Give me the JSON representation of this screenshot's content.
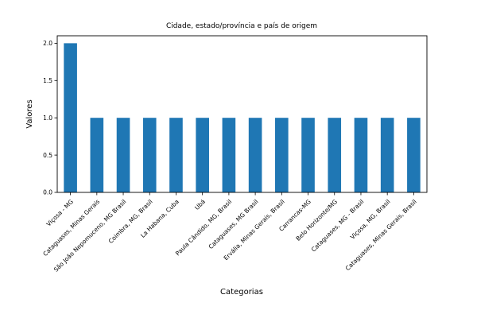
{
  "chart_data": {
    "type": "bar",
    "title": "Cidade, estado/província e país de origem",
    "xlabel": "Categorias",
    "ylabel": "Valores",
    "categories": [
      "Viçosa - MG",
      "Cataguases, Minas Gerais",
      "São João Nepomuceno, MG Brasil",
      "Coimbra, MG, Brasil",
      "La Habana, Cuba",
      "Ubá",
      "Paula Cândido, MG, Brasil",
      "Cataguases, MG Brasil",
      "Ervália, Minas Gerais, Brasil",
      "Carrancas-MG",
      "Belo Horizonte/MG",
      "Cataguases, MG - Brasil",
      "Viçosa, MG, Brasil",
      "Cataguases, Minas Gerais, Brasil"
    ],
    "values": [
      2,
      1,
      1,
      1,
      1,
      1,
      1,
      1,
      1,
      1,
      1,
      1,
      1,
      1
    ],
    "ylim": [
      0,
      2.1
    ],
    "yticks": [
      0.0,
      0.5,
      1.0,
      1.5,
      2.0
    ],
    "ytick_labels": [
      "0.0",
      "0.5",
      "1.0",
      "1.5",
      "2.0"
    ],
    "grid": false,
    "legend": "none",
    "bar_color": "#1f77b4"
  }
}
